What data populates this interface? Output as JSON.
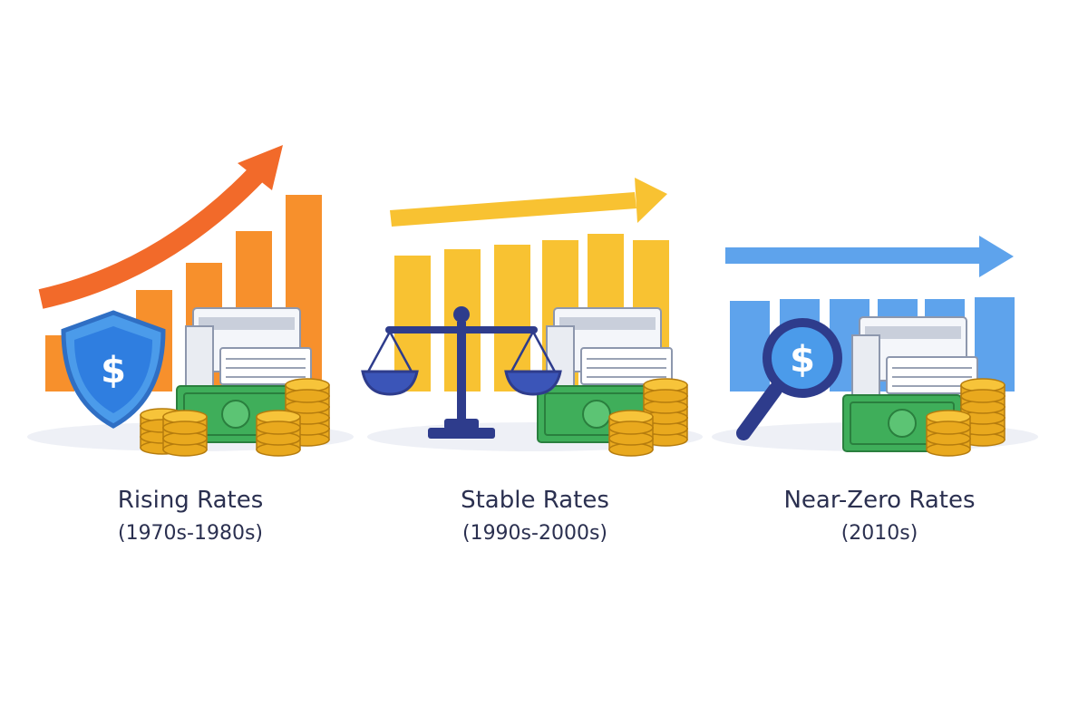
{
  "panels": [
    {
      "title": "Rising Rates",
      "period": "(1970s-1980s)"
    },
    {
      "title": "Stable Rates",
      "period": "(1990s-2000s)"
    },
    {
      "title": "Near-Zero Rates",
      "period": "(2010s)"
    }
  ]
}
